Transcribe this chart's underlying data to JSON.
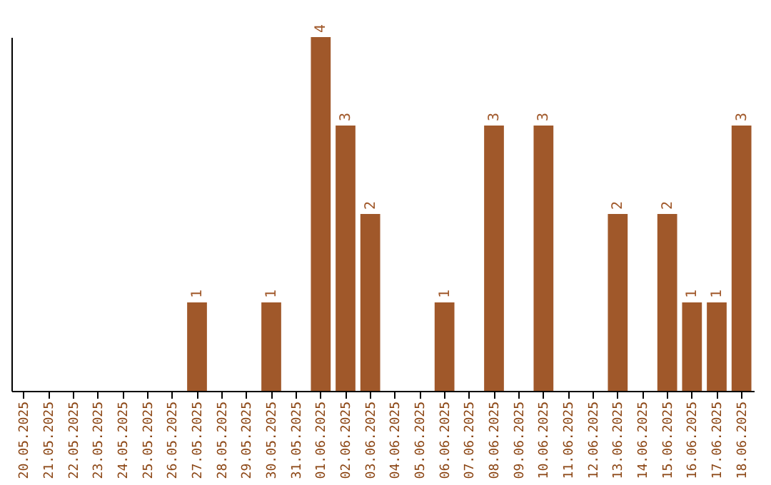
{
  "chart_data": {
    "type": "bar",
    "categories": [
      "20.05.2025",
      "21.05.2025",
      "22.05.2025",
      "23.05.2025",
      "24.05.2025",
      "25.05.2025",
      "26.05.2025",
      "27.05.2025",
      "28.05.2025",
      "29.05.2025",
      "30.05.2025",
      "31.05.2025",
      "01.06.2025",
      "02.06.2025",
      "03.06.2025",
      "04.06.2025",
      "05.06.2025",
      "06.06.2025",
      "07.06.2025",
      "08.06.2025",
      "09.06.2025",
      "10.06.2025",
      "11.06.2025",
      "12.06.2025",
      "13.06.2025",
      "14.06.2025",
      "15.06.2025",
      "16.06.2025",
      "17.06.2025",
      "18.06.2025"
    ],
    "values": [
      0,
      0,
      0,
      0,
      0,
      0,
      0,
      1,
      0,
      0,
      1,
      0,
      4,
      3,
      2,
      0,
      0,
      1,
      0,
      3,
      0,
      3,
      0,
      0,
      2,
      0,
      2,
      1,
      1,
      3
    ],
    "value_labels": [
      null,
      null,
      null,
      null,
      null,
      null,
      null,
      "1",
      null,
      null,
      "1",
      null,
      "4",
      "3",
      "2",
      null,
      null,
      "1",
      null,
      "3",
      null,
      "3",
      null,
      null,
      "2",
      null,
      "2",
      "1",
      "1",
      "3"
    ],
    "color": "#a0582a",
    "tick_labels": "x",
    "grid": false
  }
}
